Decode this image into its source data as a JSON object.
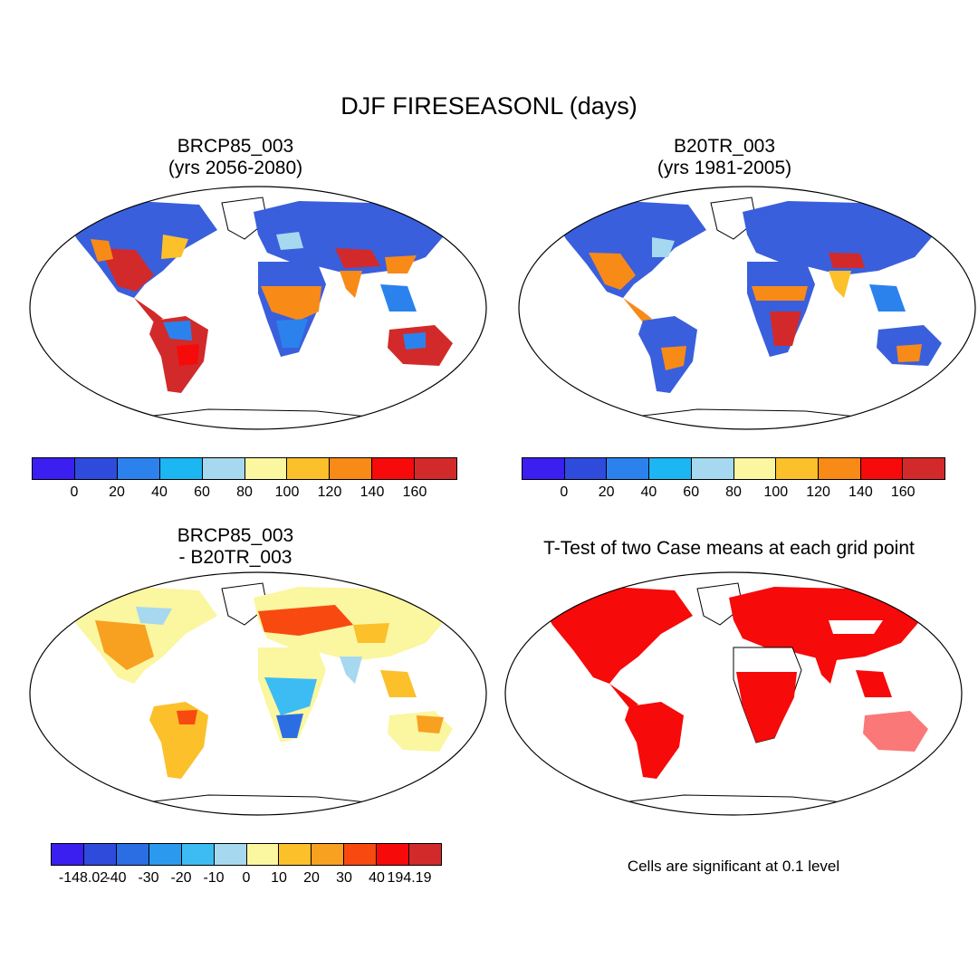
{
  "title": "DJF FIRESEASONL (days)",
  "panels": [
    {
      "title_line1": "BRCP85_003",
      "title_line2": "(yrs 2056-2080)"
    },
    {
      "title_line1": "B20TR_003",
      "title_line2": "(yrs 1981-2005)"
    },
    {
      "title_line1": "BRCP85_003",
      "title_line2": "- B20TR_003"
    },
    {
      "title_line1": "T-Test of two Case means at each grid point",
      "title_line2": ""
    }
  ],
  "colorbar_abs": {
    "colors": [
      "#3a1ff0",
      "#2f4bdc",
      "#2b82ec",
      "#1cb6f2",
      "#a6d8f0",
      "#fbf6a0",
      "#fbc02a",
      "#f88a18",
      "#f60a0a",
      "#d22a2a"
    ],
    "labels": [
      "0",
      "20",
      "40",
      "60",
      "80",
      "100",
      "120",
      "140",
      "160"
    ]
  },
  "colorbar_diff": {
    "colors": [
      "#3a1ff0",
      "#2f4bdc",
      "#2b6ee4",
      "#2b9aee",
      "#3cbcf2",
      "#a6d8f0",
      "#fbf6a0",
      "#fbc02a",
      "#f8a020",
      "#f84a10",
      "#f60a0a",
      "#d22a2a"
    ],
    "labels": [
      "-148.02",
      "-40",
      "-30",
      "-20",
      "-10",
      "0",
      "10",
      "20",
      "30",
      "40",
      "194.19"
    ]
  },
  "significance_note": "Cells are significant at 0.1 level",
  "map_colors": {
    "land_blue": "#3a5fdc",
    "ocean": "#ffffff",
    "signif": "#f60a0a"
  }
}
